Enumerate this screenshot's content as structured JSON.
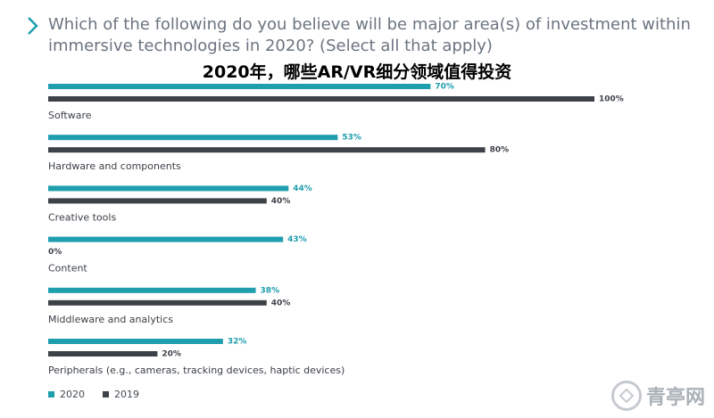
{
  "header": {
    "question": "Which of the following do you believe will be major area(s) of investment within immersive technologies in 2020? (Select all that apply)",
    "overlay_title": "2020年，哪些AR/VR细分领域值得投资"
  },
  "watermark": {
    "text": "青亭网",
    "icon": "diamond-logo-icon"
  },
  "colors": {
    "s2020": "#1f9ead",
    "s2019": "#3d4148",
    "label2020": "#1f9ead",
    "label2019": "#3d4148"
  },
  "chart_data": {
    "type": "bar",
    "orientation": "horizontal",
    "categories": [
      "Software",
      "Hardware and components",
      "Creative tools",
      "Content",
      "Middleware and analytics",
      "Peripherals (e.g., cameras, tracking devices, haptic devices)"
    ],
    "series": [
      {
        "name": "2020",
        "values": [
          70,
          53,
          44,
          43,
          38,
          32
        ]
      },
      {
        "name": "2019",
        "values": [
          100,
          80,
          40,
          0,
          40,
          20
        ]
      }
    ],
    "xlim": [
      0,
      100
    ],
    "value_suffix": "%",
    "grid": false,
    "legend_position": "bottom-left"
  }
}
